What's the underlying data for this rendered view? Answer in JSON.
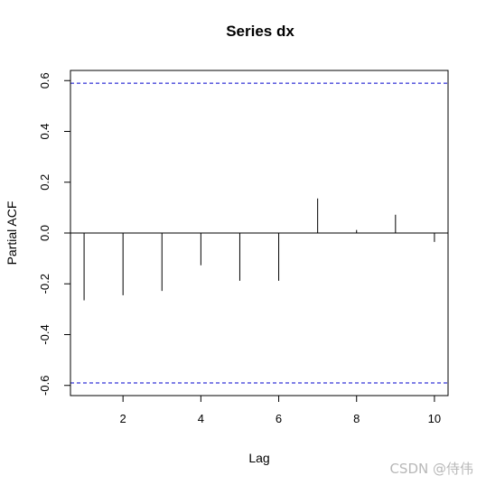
{
  "chart_data": {
    "type": "bar",
    "title": "Series  dx",
    "xlabel": "Lag",
    "ylabel": "Partial ACF",
    "x": [
      1,
      2,
      3,
      4,
      5,
      6,
      7,
      8,
      9,
      10
    ],
    "values": [
      -0.265,
      -0.245,
      -0.228,
      -0.127,
      -0.188,
      -0.188,
      0.136,
      0.012,
      0.072,
      -0.035
    ],
    "xlim": [
      0.65,
      10.35
    ],
    "ylim": [
      -0.64,
      0.64
    ],
    "xticks": [
      2,
      4,
      6,
      8,
      10
    ],
    "yticks": [
      -0.6,
      -0.4,
      -0.2,
      0.0,
      0.2,
      0.4,
      0.6
    ],
    "ytick_labels": [
      "-0.6",
      "-0.4",
      "-0.2",
      "0.0",
      "0.2",
      "0.4",
      "0.6"
    ],
    "confidence_bound": 0.59,
    "bound_color": "#0000cc",
    "grid": false
  },
  "watermark": "CSDN @侍伟"
}
